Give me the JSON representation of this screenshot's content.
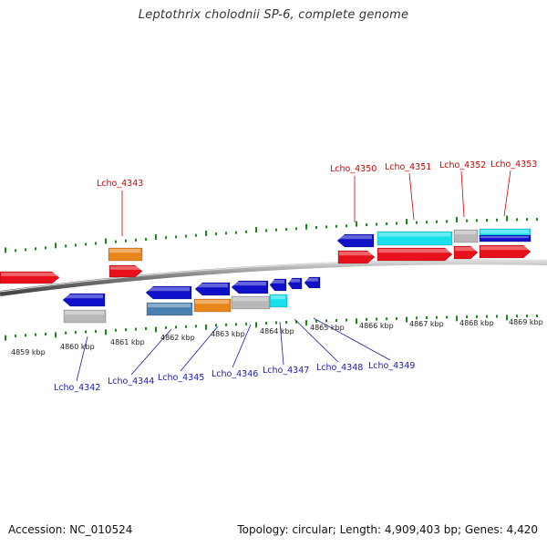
{
  "title": "Leptothrix cholodnii SP-6, complete genome",
  "footer": {
    "accession": "Accession: NC_010524",
    "summary": "Topology: circular; Length: 4,909,403 bp; Genes: 4,420"
  },
  "colors": {
    "red": "#e8101a",
    "blue": "#1010c8",
    "orange": "#e8861a",
    "gray": "#b8b8b8",
    "cyan": "#18e0ec",
    "steelblue": "#4a80b0",
    "tick": "#1a8a1a"
  },
  "scale_labels": [
    "4859 kbp",
    "4860 kbp",
    "4861 kbp",
    "4862 kbp",
    "4863 kbp",
    "4864 kbp",
    "4865 kbp",
    "4866 kbp",
    "4867 kbp",
    "4868 kbp",
    "4869 kbp"
  ],
  "gene_labels_top": [
    "Lcho_4343",
    "Lcho_4350",
    "Lcho_4351",
    "Lcho_4352",
    "Lcho_4353"
  ],
  "gene_labels_bottom": [
    "Lcho_4342",
    "Lcho_4344",
    "Lcho_4345",
    "Lcho_4346",
    "Lcho_4347",
    "Lcho_4348",
    "Lcho_4349"
  ]
}
